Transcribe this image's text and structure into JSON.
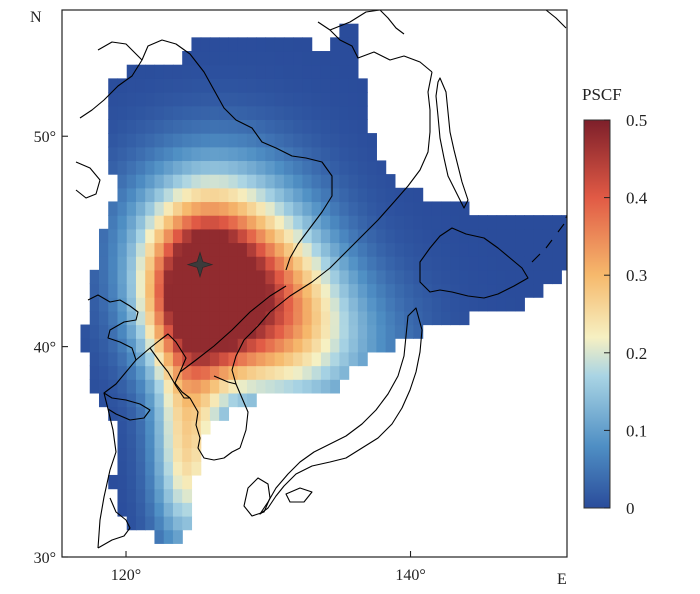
{
  "map": {
    "north_label": "N",
    "east_label": "E",
    "lat_ticks": [
      {
        "label": "50°",
        "value": 50
      },
      {
        "label": "40°",
        "value": 40
      },
      {
        "label": "30°",
        "value": 30
      }
    ],
    "lon_ticks": [
      {
        "label": "120°",
        "value": 120
      },
      {
        "label": "140°",
        "value": 140
      }
    ],
    "lon_range": [
      115.5,
      151
    ],
    "lat_range": [
      30,
      56
    ],
    "receptor_site": {
      "lon": 125.2,
      "lat": 43.9,
      "marker": "star-icon"
    }
  },
  "colorbar": {
    "title": "PSCF",
    "ticks": [
      "0.5",
      "0.4",
      "0.3",
      "0.2",
      "0.1",
      "0"
    ],
    "range": [
      0,
      0.5
    ],
    "colors": [
      "#2a4c9b",
      "#4f8fc4",
      "#a9d4e4",
      "#f6f0c2",
      "#f6b96c",
      "#e15a45",
      "#7d1f2a"
    ]
  },
  "field": {
    "variable": "PSCF",
    "peak_value": 0.45,
    "peak_location": {
      "lon": 125,
      "lat": 42.3
    }
  }
}
